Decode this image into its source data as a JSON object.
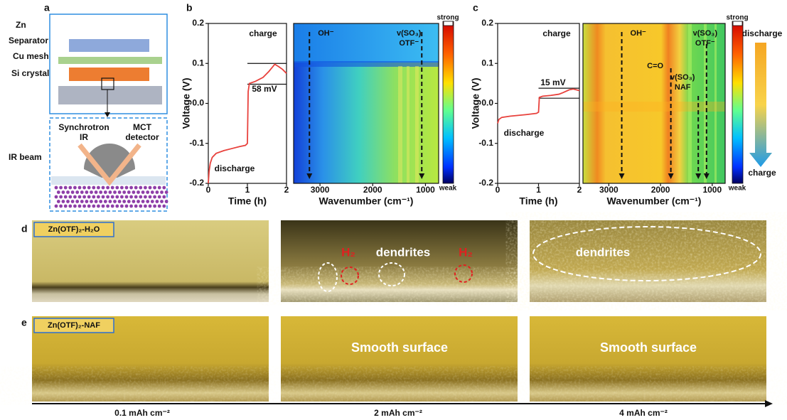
{
  "panel_labels": [
    "a",
    "b",
    "c",
    "d",
    "e"
  ],
  "schematic": {
    "layers": [
      "Zn",
      "Separator",
      "Cu mesh",
      "Si crystal"
    ],
    "beam_label": "IR beam",
    "source": [
      "Synchrotron",
      "IR"
    ],
    "detector": [
      "MCT",
      "detector"
    ]
  },
  "chart_data": [
    {
      "type": "line",
      "panel": "b",
      "ylabel": "Voltage (V)",
      "xlabel": "Time (h)",
      "xlim": [
        0,
        2
      ],
      "xticks": [
        0,
        1,
        2
      ],
      "ylim": [
        -0.2,
        0.2
      ],
      "yticks": [
        -0.2,
        -0.1,
        {
          "value": 0,
          "label": "0.0"
        },
        0.1,
        0.2
      ],
      "x": [
        0,
        0.02,
        0.05,
        0.1,
        0.2,
        0.4,
        0.6,
        0.8,
        0.95,
        1.0,
        1.02,
        1.05,
        1.2,
        1.4,
        1.55,
        1.7,
        1.8,
        1.9,
        2.0
      ],
      "series": [
        {
          "color": "#e8413c",
          "values": [
            -0.2,
            -0.17,
            -0.15,
            -0.135,
            -0.125,
            -0.118,
            -0.113,
            -0.108,
            -0.105,
            -0.1,
            0.03,
            0.05,
            0.055,
            0.065,
            0.08,
            0.098,
            0.092,
            0.085,
            0.075
          ]
        }
      ],
      "ref_lines": [
        0.1,
        0.048
      ],
      "annotations": [
        "charge",
        "discharge",
        "58 mV"
      ]
    },
    {
      "type": "heatmap",
      "xlabel": "Wavenumber (cm⁻¹)",
      "xlim": [
        3500,
        750
      ],
      "xticks": [
        3000,
        2000,
        1000
      ],
      "colorbar_labels": [
        "strong",
        "weak"
      ],
      "markers": [
        {
          "label": [
            "OH⁻"
          ],
          "x": 3200
        },
        {
          "label": [
            "v(SO₃)",
            "OTF⁻"
          ],
          "x": 1070
        }
      ]
    },
    {
      "type": "line",
      "panel": "c",
      "ylabel": "Voltage (V)",
      "xlabel": "Time (h)",
      "xlim": [
        0,
        2
      ],
      "xticks": [
        0,
        1,
        2
      ],
      "ylim": [
        -0.2,
        0.2
      ],
      "yticks": [
        -0.2,
        -0.1,
        {
          "value": 0,
          "label": "0.0"
        },
        0.1,
        0.2
      ],
      "x": [
        0,
        0.03,
        0.1,
        0.3,
        0.5,
        0.7,
        0.95,
        1.0,
        1.02,
        1.1,
        1.3,
        1.5,
        1.6,
        1.75,
        1.85,
        2.0
      ],
      "series": [
        {
          "color": "#e8413c",
          "values": [
            -0.05,
            -0.04,
            -0.035,
            -0.032,
            -0.03,
            -0.028,
            -0.025,
            -0.022,
            0.015,
            0.018,
            0.02,
            0.023,
            0.027,
            0.034,
            0.036,
            0.032
          ]
        }
      ],
      "ref_lines": [
        0.038,
        0.013
      ],
      "annotations": [
        "charge",
        "discharge",
        "15 mV"
      ]
    },
    {
      "type": "heatmap",
      "xlabel": "Wavenumber (cm⁻¹)",
      "xlim": [
        3500,
        750
      ],
      "xticks": [
        3000,
        2000,
        1000
      ],
      "colorbar_labels": [
        "strong",
        "weak"
      ],
      "markers": [
        {
          "label": [
            "OH⁻"
          ],
          "x": 2750
        },
        {
          "label": [
            "C=O"
          ],
          "x": 1800
        },
        {
          "label": [
            "v(SO₃)",
            "NAF"
          ],
          "x": 1270
        },
        {
          "label": [
            "v(SO₃)",
            "OTF⁻"
          ],
          "x": 1110
        }
      ]
    }
  ],
  "direction_arrow": {
    "top": "discharge",
    "bottom": "charge"
  },
  "micrographs": {
    "rows": [
      {
        "label": "Zn(OTF)₂-H₂O",
        "annotations": [
          "H₂",
          "dendrites",
          "H₂",
          "dendrites"
        ]
      },
      {
        "label": "Zn(OTF)₂-NAF",
        "annotations": [
          "Smooth surface",
          "Smooth surface"
        ]
      }
    ],
    "capacities": [
      "0.1 mAh cm⁻²",
      "2 mAh cm⁻²",
      "4 mAh cm⁻²"
    ]
  }
}
